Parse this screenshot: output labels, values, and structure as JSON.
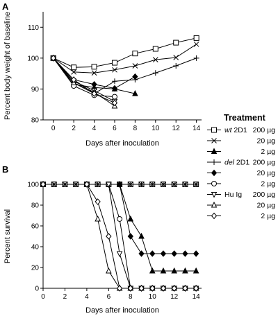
{
  "figure": {
    "legend": {
      "title": "Treatment",
      "entries": [
        {
          "group_prefix": "wt",
          "group_suffix": " 2D1",
          "dose": "200 µg",
          "marker": "square-open"
        },
        {
          "group_prefix": "",
          "group_suffix": "",
          "dose": "20 µg",
          "marker": "x"
        },
        {
          "group_prefix": "",
          "group_suffix": "",
          "dose": "2 µg",
          "marker": "triangle-filled"
        },
        {
          "group_prefix": "del",
          "group_suffix": " 2D1",
          "dose": "200 µg",
          "marker": "plus"
        },
        {
          "group_prefix": "",
          "group_suffix": "",
          "dose": "20 µg",
          "marker": "diamond-filled"
        },
        {
          "group_prefix": "",
          "group_suffix": "",
          "dose": "2 µg",
          "marker": "circle-open"
        },
        {
          "group_prefix": "",
          "group_suffix": "Hu Ig",
          "dose": "200 µg",
          "marker": "triangle-down-open"
        },
        {
          "group_prefix": "",
          "group_suffix": "",
          "dose": "20 µg",
          "marker": "triangle-open"
        },
        {
          "group_prefix": "",
          "group_suffix": "",
          "dose": "2 µg",
          "marker": "diamond-open"
        }
      ]
    }
  },
  "chart_data": [
    {
      "panel": "A",
      "type": "line",
      "xlabel": "Days after inoculation",
      "ylabel": "Percent body weight of baseline",
      "xlim": [
        -1,
        14.5
      ],
      "ylim": [
        80,
        115
      ],
      "xticks": [
        0,
        2,
        4,
        6,
        8,
        10,
        12,
        14
      ],
      "yticks": [
        80,
        90,
        100,
        110
      ],
      "grid": false,
      "series": [
        {
          "marker": "square-open",
          "points": [
            [
              0,
              100
            ],
            [
              2,
              97
            ],
            [
              4,
              97.2
            ],
            [
              6,
              98.5
            ],
            [
              8,
              101.5
            ],
            [
              10,
              103
            ],
            [
              12,
              105
            ],
            [
              14,
              106.5
            ]
          ]
        },
        {
          "marker": "x",
          "points": [
            [
              0,
              100
            ],
            [
              2,
              95.5
            ],
            [
              4,
              95.2
            ],
            [
              6,
              96.2
            ],
            [
              8,
              97.5
            ],
            [
              10,
              99.5
            ],
            [
              12,
              100.2
            ],
            [
              14,
              104.5
            ]
          ]
        },
        {
          "marker": "triangle-filled",
          "points": [
            [
              0,
              100
            ],
            [
              2,
              91.5
            ],
            [
              4,
              90.5
            ],
            [
              6,
              90
            ],
            [
              8,
              88.5
            ]
          ]
        },
        {
          "marker": "plus",
          "points": [
            [
              0,
              100
            ],
            [
              2,
              92
            ],
            [
              4,
              88.5
            ],
            [
              6,
              92.5
            ],
            [
              8,
              93
            ],
            [
              10,
              95.2
            ],
            [
              12,
              97.5
            ],
            [
              14,
              100
            ]
          ]
        },
        {
          "marker": "diamond-filled",
          "points": [
            [
              0,
              100
            ],
            [
              2,
              93
            ],
            [
              4,
              91.5
            ],
            [
              6,
              90.2
            ],
            [
              8,
              94
            ]
          ]
        },
        {
          "marker": "circle-open",
          "points": [
            [
              0,
              100
            ],
            [
              2,
              91
            ],
            [
              4,
              88
            ],
            [
              6,
              87.5
            ]
          ]
        },
        {
          "marker": "triangle-down-open",
          "points": [
            [
              0,
              100
            ],
            [
              2,
              92.5
            ],
            [
              4,
              89.5
            ],
            [
              6,
              86
            ]
          ]
        },
        {
          "marker": "triangle-open",
          "points": [
            [
              0,
              100
            ],
            [
              2,
              92
            ],
            [
              4,
              89
            ],
            [
              6,
              84.5
            ]
          ]
        },
        {
          "marker": "diamond-open",
          "points": [
            [
              0,
              100
            ],
            [
              2,
              93
            ],
            [
              4,
              88.5
            ],
            [
              6,
              85.5
            ]
          ]
        }
      ]
    },
    {
      "panel": "B",
      "type": "line",
      "xlabel": "Days after inoculation",
      "ylabel": "Percent survival",
      "xlim": [
        0,
        14.5
      ],
      "ylim": [
        0,
        100
      ],
      "xticks": [
        0,
        2,
        4,
        6,
        8,
        10,
        12,
        14
      ],
      "yticks": [
        0,
        20,
        40,
        60,
        80,
        100
      ],
      "grid": false,
      "series": [
        {
          "marker": "square-open",
          "points": [
            [
              0,
              100
            ],
            [
              1,
              100
            ],
            [
              2,
              100
            ],
            [
              3,
              100
            ],
            [
              4,
              100
            ],
            [
              5,
              100
            ],
            [
              6,
              100
            ],
            [
              7,
              100
            ],
            [
              8,
              100
            ],
            [
              9,
              100
            ],
            [
              10,
              100
            ],
            [
              11,
              100
            ],
            [
              12,
              100
            ],
            [
              13,
              100
            ],
            [
              14,
              100
            ]
          ]
        },
        {
          "marker": "x",
          "points": [
            [
              0,
              100
            ],
            [
              1,
              100
            ],
            [
              2,
              100
            ],
            [
              3,
              100
            ],
            [
              4,
              100
            ],
            [
              5,
              100
            ],
            [
              6,
              100
            ],
            [
              7,
              100
            ],
            [
              8,
              100
            ],
            [
              9,
              100
            ],
            [
              10,
              100
            ],
            [
              11,
              100
            ],
            [
              12,
              100
            ],
            [
              13,
              100
            ],
            [
              14,
              100
            ]
          ]
        },
        {
          "marker": "triangle-filled",
          "points": [
            [
              0,
              100
            ],
            [
              7,
              100
            ],
            [
              8,
              66.7
            ],
            [
              9,
              50
            ],
            [
              10,
              16.7
            ],
            [
              11,
              16.7
            ],
            [
              12,
              16.7
            ],
            [
              13,
              16.7
            ],
            [
              14,
              16.7
            ]
          ]
        },
        {
          "marker": "plus",
          "points": [
            [
              0,
              100
            ],
            [
              1,
              100
            ],
            [
              2,
              100
            ],
            [
              3,
              100
            ],
            [
              4,
              100
            ],
            [
              5,
              100
            ],
            [
              6,
              100
            ],
            [
              7,
              100
            ],
            [
              8,
              100
            ],
            [
              9,
              100
            ],
            [
              10,
              100
            ],
            [
              11,
              100
            ],
            [
              12,
              100
            ],
            [
              13,
              100
            ],
            [
              14,
              100
            ]
          ]
        },
        {
          "marker": "diamond-filled",
          "points": [
            [
              0,
              100
            ],
            [
              7,
              100
            ],
            [
              8,
              50
            ],
            [
              9,
              33.3
            ],
            [
              10,
              33.3
            ],
            [
              11,
              33.3
            ],
            [
              12,
              33.3
            ],
            [
              13,
              33.3
            ],
            [
              14,
              33.3
            ]
          ]
        },
        {
          "marker": "circle-open",
          "points": [
            [
              0,
              100
            ],
            [
              6,
              100
            ],
            [
              7,
              66.7
            ],
            [
              8,
              0
            ],
            [
              9,
              0
            ],
            [
              10,
              0
            ],
            [
              11,
              0
            ],
            [
              12,
              0
            ],
            [
              13,
              0
            ],
            [
              14,
              0
            ]
          ]
        },
        {
          "marker": "triangle-down-open",
          "points": [
            [
              0,
              100
            ],
            [
              6,
              100
            ],
            [
              7,
              33.3
            ],
            [
              8,
              0
            ],
            [
              9,
              0
            ],
            [
              10,
              0
            ],
            [
              11,
              0
            ],
            [
              12,
              0
            ],
            [
              13,
              0
            ],
            [
              14,
              0
            ]
          ]
        },
        {
          "marker": "triangle-open",
          "points": [
            [
              0,
              100
            ],
            [
              4,
              100
            ],
            [
              5,
              66.7
            ],
            [
              6,
              16.7
            ],
            [
              7,
              0
            ],
            [
              8,
              0
            ],
            [
              9,
              0
            ],
            [
              10,
              0
            ],
            [
              11,
              0
            ],
            [
              12,
              0
            ],
            [
              13,
              0
            ],
            [
              14,
              0
            ]
          ]
        },
        {
          "marker": "diamond-open",
          "points": [
            [
              0,
              100
            ],
            [
              4,
              100
            ],
            [
              5,
              83.3
            ],
            [
              6,
              50
            ],
            [
              7,
              0
            ],
            [
              8,
              0
            ],
            [
              9,
              0
            ],
            [
              10,
              0
            ],
            [
              11,
              0
            ],
            [
              12,
              0
            ],
            [
              13,
              0
            ],
            [
              14,
              0
            ]
          ]
        }
      ]
    }
  ]
}
